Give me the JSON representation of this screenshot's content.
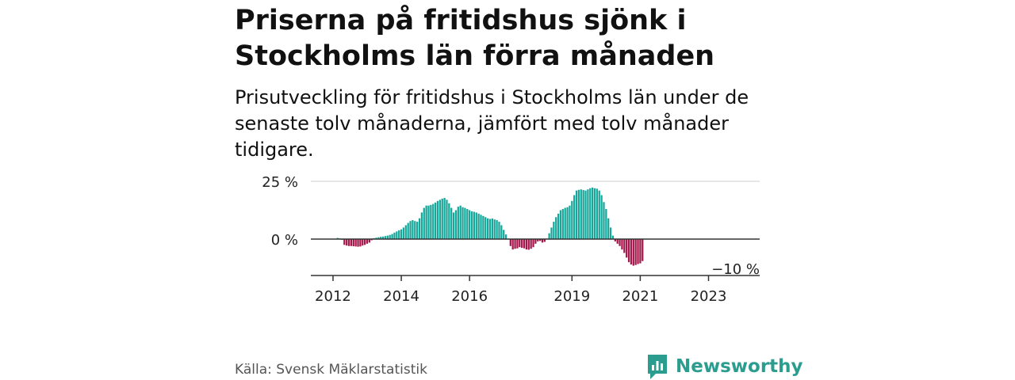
{
  "title": "Priserna på fritidshus sjönk i Stockholms län förra månaden",
  "subtitle": "Prisutveckling för fritidshus i Stockholms län under de senaste tolv månaderna, jämfört med tolv månader tidigare.",
  "source": "Källa: Svensk Mäklarstatistik",
  "brand": {
    "name": "Newsworthy",
    "icon": "newsworthy-logo-icon"
  },
  "colors": {
    "positive": "#17a69a",
    "negative": "#a3174a",
    "axis": "#333333",
    "grid": "#cccccc"
  },
  "chart_data": {
    "type": "bar",
    "title": "",
    "xlabel": "",
    "ylabel": "",
    "ylim": [
      -16,
      25
    ],
    "y_ticks": [
      {
        "value": 25,
        "label": "25 %"
      },
      {
        "value": 0,
        "label": "0 %"
      },
      {
        "value": -10,
        "label": "−10 %"
      }
    ],
    "x_ticks": [
      {
        "index": 9,
        "label": "2012"
      },
      {
        "index": 39,
        "label": "2014"
      },
      {
        "index": 69,
        "label": "2016"
      },
      {
        "index": 114,
        "label": "2019"
      },
      {
        "index": 144,
        "label": "2021"
      },
      {
        "index": 174,
        "label": "2023"
      }
    ],
    "unit": "%",
    "values": [
      0,
      0,
      0,
      0,
      0,
      0,
      0,
      0,
      0,
      0,
      0,
      0.5,
      0.3,
      -0.3,
      -2.5,
      -2.8,
      -3.0,
      -3.0,
      -3.1,
      -3.2,
      -3.3,
      -3.2,
      -2.8,
      -2.5,
      -2.0,
      -1.5,
      -0.5,
      0.4,
      0.6,
      0.8,
      1.0,
      1.1,
      1.3,
      1.5,
      1.8,
      2.2,
      2.8,
      3.3,
      3.8,
      4.2,
      5.0,
      6.0,
      7.0,
      7.8,
      8.2,
      7.8,
      7.5,
      9.0,
      11.5,
      13.5,
      14.5,
      14.5,
      14.8,
      15.2,
      15.8,
      16.5,
      17.0,
      17.5,
      17.8,
      17.0,
      15.5,
      13.5,
      11.5,
      12.5,
      14.0,
      14.5,
      13.8,
      13.5,
      13.0,
      12.5,
      12.0,
      11.8,
      11.5,
      11.0,
      10.5,
      10.0,
      9.5,
      9.0,
      8.7,
      8.9,
      8.5,
      8.2,
      7.5,
      6.0,
      4.0,
      2.0,
      0.2,
      -3.0,
      -4.5,
      -4.2,
      -4.0,
      -3.5,
      -3.8,
      -4.0,
      -4.5,
      -4.6,
      -4.2,
      -3.5,
      -2.0,
      -1.0,
      -0.8,
      -1.5,
      -1.2,
      0.2,
      2.5,
      5.0,
      7.5,
      9.5,
      11.0,
      12.5,
      13.0,
      13.5,
      13.8,
      14.5,
      16.5,
      19.0,
      21.0,
      21.3,
      21.5,
      21.2,
      21.0,
      21.5,
      22.0,
      22.3,
      22.0,
      21.8,
      21.0,
      19.0,
      16.0,
      13.0,
      9.0,
      5.0,
      1.5,
      -1.0,
      -2.0,
      -3.0,
      -4.5,
      -6.0,
      -8.0,
      -10.0,
      -11.0,
      -11.5,
      -11.2,
      -10.8,
      -10.5,
      -9.5
    ]
  }
}
